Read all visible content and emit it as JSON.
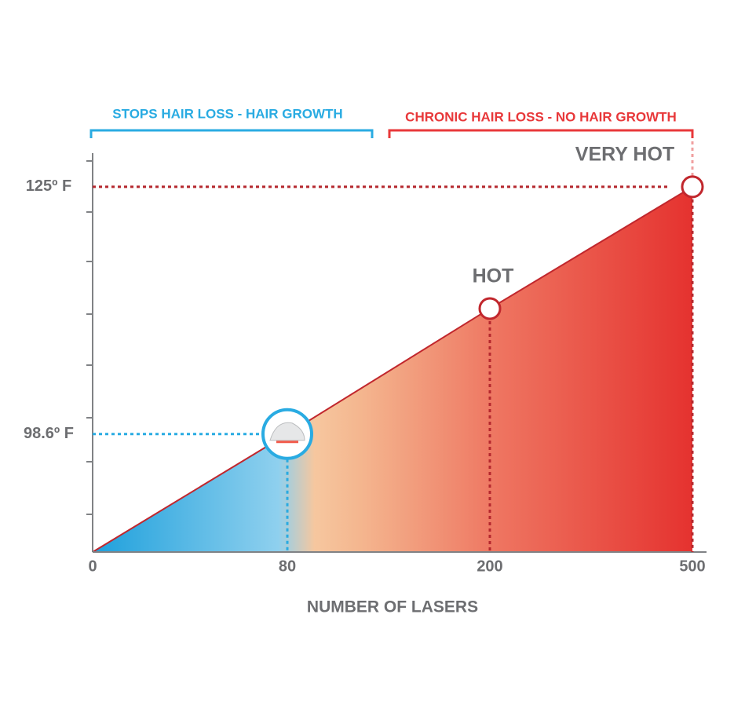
{
  "chart_data": {
    "type": "area",
    "header_left": "STOPS HAIR LOSS - HAIR GROWTH",
    "header_right": "CHRONIC HAIR LOSS - NO HAIR GROWTH",
    "x_label": "NUMBER OF LASERS",
    "categories": [
      "0",
      "80",
      "200",
      "500"
    ],
    "series": [
      {
        "color": "#c1272d",
        "values": [
          86,
          98.6,
          112,
          125
        ]
      }
    ],
    "annotations": [
      {
        "index": 2,
        "text": "HOT"
      },
      {
        "index": 3,
        "text": "VERY HOT"
      }
    ],
    "ylim": [
      86,
      128.6
    ],
    "yticks": [
      {
        "value": 98.6,
        "label": "98.6º F"
      },
      {
        "value": 125,
        "label": "125º F"
      }
    ]
  }
}
